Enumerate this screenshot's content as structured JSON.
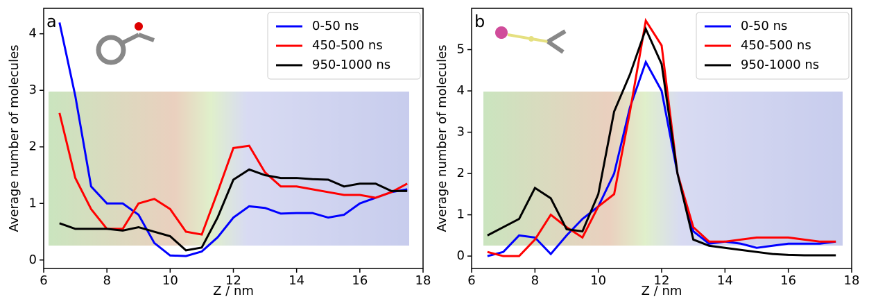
{
  "chart_data": [
    {
      "type": "line",
      "panel_label": "a",
      "xlabel": "Z / nm",
      "ylabel": "Average number of molecules",
      "x": [
        6.5,
        7,
        7.5,
        8,
        8.5,
        9,
        9.5,
        10,
        10.5,
        11,
        11.5,
        12,
        12.5,
        13,
        13.5,
        14,
        14.5,
        15,
        15.5,
        16,
        16.5,
        17,
        17.5
      ],
      "series": [
        {
          "name": "0-50 ns",
          "color": "#0000ff",
          "values": [
            4.2,
            2.9,
            1.3,
            1.0,
            1.0,
            0.8,
            0.3,
            0.08,
            0.07,
            0.15,
            0.4,
            0.75,
            0.95,
            0.92,
            0.82,
            0.83,
            0.83,
            0.75,
            0.8,
            1.0,
            1.1,
            1.2,
            1.25
          ]
        },
        {
          "name": "450-500 ns",
          "color": "#ff0000",
          "values": [
            2.6,
            1.45,
            0.9,
            0.55,
            0.55,
            1.0,
            1.08,
            0.9,
            0.5,
            0.45,
            1.2,
            1.98,
            2.02,
            1.55,
            1.3,
            1.3,
            1.25,
            1.2,
            1.15,
            1.15,
            1.1,
            1.2,
            1.35
          ]
        },
        {
          "name": "950-1000 ns",
          "color": "#000000",
          "values": [
            0.65,
            0.55,
            0.55,
            0.55,
            0.52,
            0.58,
            0.5,
            0.42,
            0.17,
            0.22,
            0.75,
            1.42,
            1.6,
            1.5,
            1.45,
            1.45,
            1.43,
            1.42,
            1.3,
            1.35,
            1.35,
            1.22,
            1.22
          ]
        }
      ],
      "xlim": [
        6,
        18
      ],
      "xticks": [
        6,
        8,
        10,
        12,
        14,
        16,
        18
      ],
      "ylim": [
        -0.15,
        4.45
      ],
      "yticks": [
        0,
        1,
        2,
        3,
        4
      ],
      "grid": false,
      "legend": "upper right"
    },
    {
      "type": "line",
      "panel_label": "b",
      "xlabel": "Z / nm",
      "ylabel": "Average number of molecules",
      "x": [
        6.5,
        7,
        7.5,
        8,
        8.5,
        9,
        9.5,
        10,
        10.5,
        11,
        11.5,
        12,
        12.5,
        13,
        13.5,
        14,
        14.5,
        15,
        15.5,
        16,
        16.5,
        17,
        17.5
      ],
      "series": [
        {
          "name": "0-50 ns",
          "color": "#0000ff",
          "values": [
            0.0,
            0.1,
            0.5,
            0.45,
            0.05,
            0.5,
            0.9,
            1.2,
            2.0,
            3.6,
            4.7,
            4.0,
            2.0,
            0.6,
            0.3,
            0.35,
            0.3,
            0.2,
            0.25,
            0.3,
            0.3,
            0.3,
            0.35
          ]
        },
        {
          "name": "450-500 ns",
          "color": "#ff0000",
          "values": [
            0.1,
            0.0,
            0.0,
            0.4,
            1.0,
            0.7,
            0.45,
            1.2,
            1.5,
            3.5,
            5.7,
            5.1,
            2.0,
            0.7,
            0.35,
            0.35,
            0.4,
            0.45,
            0.45,
            0.45,
            0.4,
            0.35,
            0.35
          ]
        },
        {
          "name": "950-1000 ns",
          "color": "#000000",
          "values": [
            0.5,
            0.7,
            0.9,
            1.65,
            1.4,
            0.65,
            0.6,
            1.5,
            3.5,
            4.4,
            5.5,
            4.65,
            2.0,
            0.4,
            0.25,
            0.2,
            0.15,
            0.1,
            0.05,
            0.03,
            0.02,
            0.02,
            0.02
          ]
        }
      ],
      "xlim": [
        6,
        18
      ],
      "xticks": [
        6,
        8,
        10,
        12,
        14,
        16,
        18
      ],
      "ylim": [
        -0.3,
        6.0
      ],
      "yticks": [
        0,
        1,
        2,
        3,
        4,
        5
      ],
      "grid": false,
      "legend": "upper right"
    }
  ]
}
